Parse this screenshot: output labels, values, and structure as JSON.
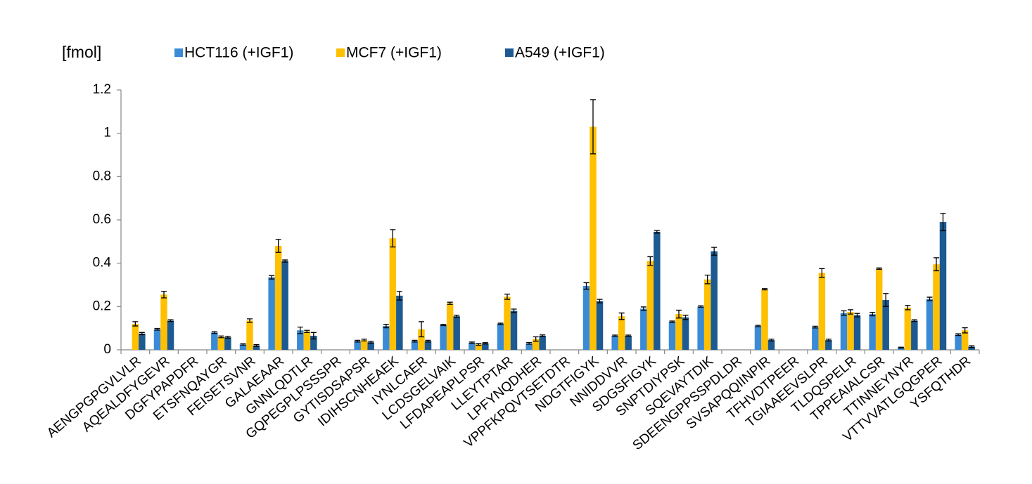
{
  "chart_data": {
    "type": "bar",
    "y_label": "[fmol]",
    "categories": [
      "AENGPGPGVLVLR",
      "AQEALDFYGEVR",
      "DGFYPAPDFR",
      "ETSFNQAYGR",
      "FEISETSVNR",
      "GALAEAAR",
      "GNNLQDTLR",
      "GQPEGPLPSSSPR",
      "GYTISDSAPSR",
      "IDIHSCNHEAEK",
      "IYNLCAER",
      "LCDSGELVAIK",
      "LFDAPEAPLPSR",
      "LLEYTPTAR",
      "LPFYNQDHER",
      "VPPFKPQVTSETDTR",
      "NDGTFIGYK",
      "NNIDDVVR",
      "SDGSFIGYK",
      "SNPTDIYPSK",
      "SQEVAYTDIK",
      "SDEENGPPSSPDLDR",
      "SVSAPQQIINPIR",
      "TFHVDTPEER",
      "TGIAAEEVSLPR",
      "TLDQSPELR",
      "TPPEAIALCSR",
      "TTINNEYNYR",
      "VTTVVATLGQGPER",
      "YSFQTHDR"
    ],
    "series": [
      {
        "name": "HCT116 (+IGF1)",
        "color": "#3a8ad6",
        "values": [
          null,
          0.095,
          null,
          0.08,
          0.025,
          0.335,
          0.09,
          null,
          0.04,
          0.11,
          0.04,
          0.115,
          0.033,
          0.12,
          0.03,
          null,
          0.295,
          0.065,
          0.19,
          0.13,
          0.2,
          null,
          0.11,
          null,
          0.105,
          0.17,
          0.165,
          0.01,
          0.235,
          0.07
        ],
        "errors": [
          null,
          0.004,
          null,
          0.004,
          0.003,
          0.008,
          0.015,
          null,
          0.004,
          0.008,
          0.004,
          0.003,
          0.003,
          0.003,
          0.004,
          null,
          0.015,
          0.003,
          0.008,
          0.003,
          0.003,
          null,
          0.003,
          null,
          0.004,
          0.01,
          0.008,
          0.002,
          0.008,
          0.004
        ]
      },
      {
        "name": "MCF7 (+IGF1)",
        "color": "#ffc000",
        "values": [
          0.12,
          0.255,
          null,
          0.06,
          0.135,
          0.48,
          0.085,
          null,
          0.045,
          0.515,
          0.095,
          0.215,
          0.025,
          0.245,
          0.05,
          null,
          1.03,
          0.155,
          0.41,
          0.165,
          0.325,
          null,
          0.28,
          null,
          0.355,
          0.175,
          0.375,
          0.195,
          0.395,
          0.09
        ],
        "errors": [
          0.01,
          0.015,
          null,
          0.004,
          0.008,
          0.03,
          0.005,
          null,
          0.004,
          0.04,
          0.035,
          0.005,
          0.004,
          0.012,
          0.01,
          null,
          0.125,
          0.015,
          0.02,
          0.018,
          0.02,
          null,
          0.003,
          null,
          0.02,
          0.01,
          0.003,
          0.01,
          0.03,
          0.012
        ]
      },
      {
        "name": "A549 (+IGF1)",
        "color": "#1d5a91",
        "values": [
          0.075,
          0.135,
          null,
          0.058,
          0.02,
          0.41,
          0.065,
          null,
          0.035,
          0.25,
          0.04,
          0.155,
          0.03,
          0.18,
          0.065,
          null,
          0.225,
          0.065,
          0.545,
          0.15,
          0.455,
          null,
          0.045,
          null,
          0.045,
          0.16,
          0.23,
          0.135,
          0.59,
          0.015
        ],
        "errors": [
          0.005,
          0.004,
          null,
          0.004,
          0.004,
          0.005,
          0.015,
          null,
          0.004,
          0.02,
          0.004,
          0.005,
          0.003,
          0.008,
          0.004,
          null,
          0.008,
          0.003,
          0.006,
          0.01,
          0.018,
          null,
          0.004,
          null,
          0.004,
          0.008,
          0.03,
          0.004,
          0.04,
          0.004
        ]
      }
    ],
    "ylim": [
      0,
      1.2
    ],
    "yticks": [
      0,
      0.2,
      0.4,
      0.6,
      0.8,
      1,
      1.2
    ],
    "grid": false
  }
}
